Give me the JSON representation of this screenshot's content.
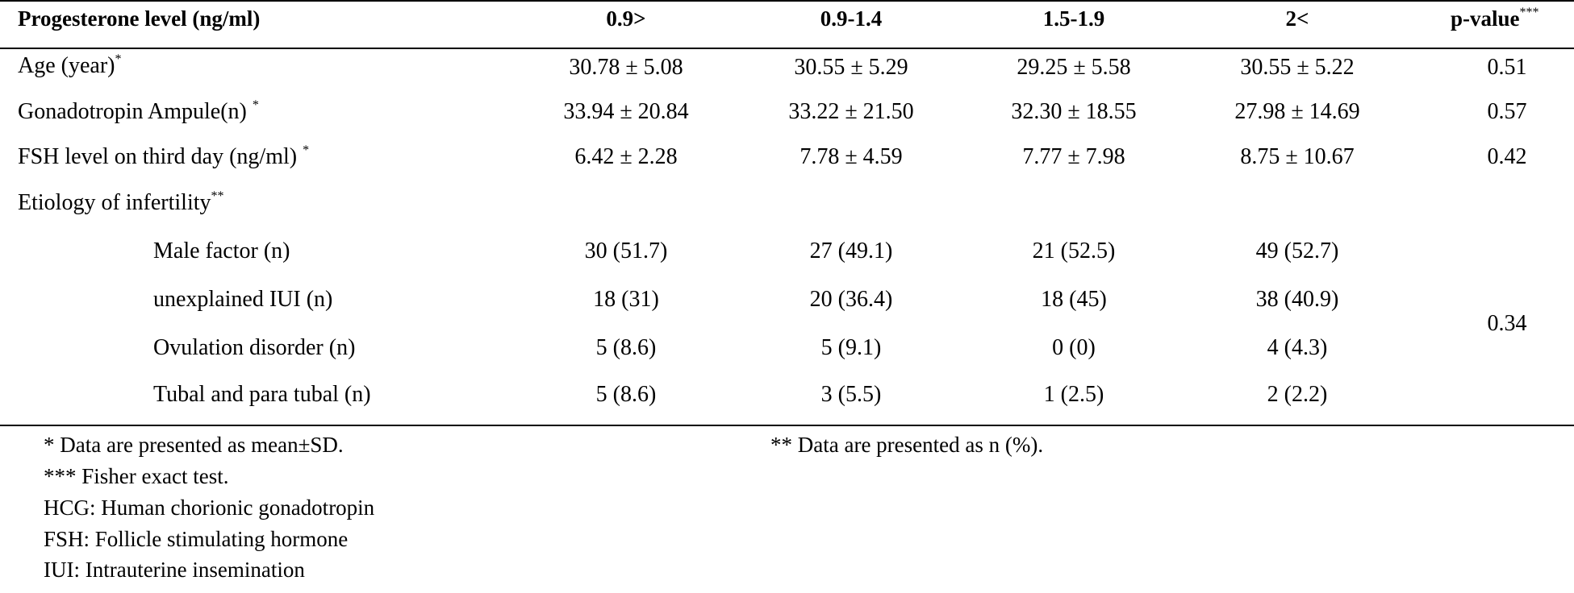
{
  "table": {
    "headers": {
      "label": "Progesterone level (ng/ml)",
      "col1": "0.9>",
      "col2": "0.9-1.4",
      "col3": "1.5-1.9",
      "col4": "2<",
      "pvalue": "p-value",
      "pvalue_sup": "***"
    },
    "rows": [
      {
        "label": "Age (year)",
        "sup": "*",
        "values": [
          "30.78 ± 5.08",
          "30.55 ± 5.29",
          "29.25 ± 5.58",
          "30.55 ± 5.22"
        ],
        "p": "0.51"
      },
      {
        "label": "Gonadotropin Ampule(n) ",
        "sup": "*",
        "values": [
          "33.94 ± 20.84",
          "33.22 ± 21.50",
          "32.30 ± 18.55",
          "27.98 ± 14.69"
        ],
        "p": "0.57"
      },
      {
        "label": "FSH level on third day (ng/ml) ",
        "sup": "*",
        "values": [
          "6.42 ± 2.28",
          "7.78 ± 4.59",
          "7.77 ± 7.98",
          "8.75 ± 10.67"
        ],
        "p": "0.42"
      },
      {
        "label": "Etiology of infertility",
        "sup": "**"
      },
      {
        "label": "Male factor (n)",
        "values": [
          "30 (51.7)",
          "27 (49.1)",
          "21 (52.5)",
          "49 (52.7)"
        ]
      },
      {
        "label": "unexplained IUI (n)",
        "values": [
          "18 (31)",
          "20 (36.4)",
          "18 (45)",
          "38 (40.9)"
        ]
      },
      {
        "label": "Ovulation disorder (n)",
        "values": [
          "5 (8.6)",
          "5 (9.1)",
          "0 (0)",
          "4 (4.3)"
        ]
      },
      {
        "label": "Tubal and para tubal (n)",
        "values": [
          "5 (8.6)",
          "3 (5.5)",
          "1 (2.5)",
          "2 (2.2)"
        ]
      }
    ],
    "etiology_p": "0.34"
  },
  "notes": {
    "left": [
      "* Data are presented as mean±SD.",
      "*** Fisher exact test.",
      "HCG: Human chorionic gonadotropin",
      "FSH: Follicle stimulating hormone",
      "IUI: Intrauterine insemination"
    ],
    "right": "** Data are presented as n (%)."
  }
}
